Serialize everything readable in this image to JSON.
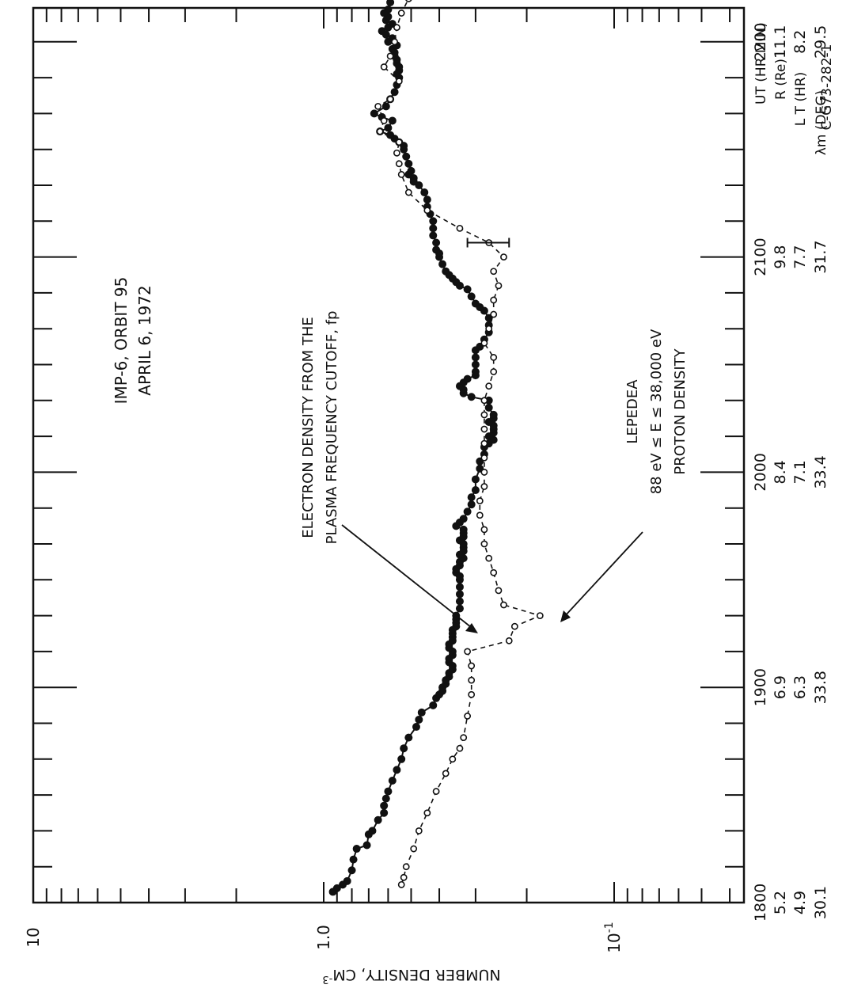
{
  "figure_id": "C-G73-282-1",
  "chart_data": {
    "type": "line",
    "scale": {
      "y": "log",
      "y_range": [
        0.01,
        10
      ],
      "x_range_ut": [
        "1800",
        "2230"
      ]
    },
    "y_axis": {
      "label": "NUMBER DENSITY, CM",
      "label_exponent": "-3",
      "tick_labels": [
        {
          "v": 10,
          "text": "10"
        },
        {
          "v": 1.0,
          "text": "1.0"
        },
        {
          "v": 0.1,
          "text": "10",
          "sup": "-1"
        }
      ]
    },
    "x_axis": {
      "row_labels": [
        "UT (HR MIN)",
        "R (Re)",
        "L T (HR)",
        "λm (DEG)"
      ],
      "major_ticks": [
        {
          "ut": 0,
          "labels": [
            "1800",
            "5.2",
            "4.9",
            "30.1"
          ]
        },
        {
          "ut": 60,
          "labels": [
            "1900",
            "6.9",
            "6.3",
            "33.8"
          ]
        },
        {
          "ut": 120,
          "labels": [
            "2000",
            "8.4",
            "7.1",
            "33.4"
          ]
        },
        {
          "ut": 180,
          "labels": [
            "2100",
            "9.8",
            "7.7",
            "31.7"
          ]
        },
        {
          "ut": 240,
          "labels": [
            "2200",
            "11.1",
            "8.2",
            "29.5"
          ]
        }
      ]
    },
    "title_lines": [
      "IMP-6, ORBIT 95",
      "APRIL 6, 1972"
    ],
    "annotations": {
      "electron": [
        "ELECTRON DENSITY FROM THE",
        "PLASMA FREQUENCY CUTOFF, fp"
      ],
      "proton": [
        "LEPEDEA",
        "88 eV ≤ E ≤ 38,000 eV",
        "PROTON DENSITY"
      ]
    },
    "series": [
      {
        "name": "ELECTRON DENSITY FROM THE PLASMA FREQUENCY CUTOFF, fp",
        "style": "solid, filled markers",
        "points": [
          [
            3,
            0.93
          ],
          [
            4,
            0.9
          ],
          [
            5,
            0.86
          ],
          [
            6,
            0.83
          ],
          [
            9,
            0.8
          ],
          [
            12,
            0.79
          ],
          [
            15,
            0.77
          ],
          [
            16,
            0.71
          ],
          [
            19,
            0.7
          ],
          [
            20,
            0.68
          ],
          [
            23,
            0.65
          ],
          [
            25,
            0.62
          ],
          [
            27,
            0.62
          ],
          [
            29,
            0.61
          ],
          [
            31,
            0.6
          ],
          [
            34,
            0.58
          ],
          [
            37,
            0.56
          ],
          [
            40,
            0.54
          ],
          [
            43,
            0.53
          ],
          [
            46,
            0.51
          ],
          [
            49,
            0.48
          ],
          [
            51,
            0.47
          ],
          [
            53,
            0.46
          ],
          [
            55,
            0.42
          ],
          [
            57,
            0.41
          ],
          [
            58,
            0.4
          ],
          [
            59,
            0.39
          ],
          [
            60,
            0.39
          ],
          [
            61,
            0.38
          ],
          [
            62,
            0.38
          ],
          [
            63,
            0.37
          ],
          [
            64,
            0.37
          ],
          [
            65,
            0.36
          ],
          [
            66,
            0.36
          ],
          [
            67,
            0.37
          ],
          [
            68,
            0.37
          ],
          [
            69,
            0.36
          ],
          [
            70,
            0.36
          ],
          [
            71,
            0.37
          ],
          [
            72,
            0.37
          ],
          [
            73,
            0.36
          ],
          [
            74,
            0.36
          ],
          [
            75,
            0.36
          ],
          [
            76,
            0.36
          ],
          [
            77,
            0.35
          ],
          [
            78,
            0.35
          ],
          [
            79,
            0.35
          ],
          [
            80,
            0.35
          ],
          [
            82,
            0.34
          ],
          [
            84,
            0.34
          ],
          [
            86,
            0.34
          ],
          [
            88,
            0.34
          ],
          [
            90,
            0.34
          ],
          [
            91,
            0.34
          ],
          [
            92,
            0.35
          ],
          [
            93,
            0.35
          ],
          [
            94,
            0.34
          ],
          [
            95,
            0.34
          ],
          [
            96,
            0.33
          ],
          [
            97,
            0.34
          ],
          [
            98,
            0.33
          ],
          [
            99,
            0.33
          ],
          [
            100,
            0.33
          ],
          [
            101,
            0.34
          ],
          [
            102,
            0.33
          ],
          [
            103,
            0.33
          ],
          [
            104,
            0.33
          ],
          [
            105,
            0.35
          ],
          [
            106,
            0.34
          ],
          [
            107,
            0.33
          ],
          [
            109,
            0.32
          ],
          [
            111,
            0.31
          ],
          [
            113,
            0.31
          ],
          [
            115,
            0.3
          ],
          [
            118,
            0.3
          ],
          [
            121,
            0.29
          ],
          [
            123,
            0.29
          ],
          [
            125,
            0.28
          ],
          [
            127,
            0.28
          ],
          [
            128,
            0.27
          ],
          [
            129,
            0.26
          ],
          [
            130,
            0.27
          ],
          [
            131,
            0.26
          ],
          [
            132,
            0.26
          ],
          [
            133,
            0.26
          ],
          [
            134,
            0.27
          ],
          [
            135,
            0.26
          ],
          [
            136,
            0.26
          ],
          [
            138,
            0.27
          ],
          [
            140,
            0.27
          ],
          [
            141,
            0.31
          ],
          [
            142,
            0.33
          ],
          [
            143,
            0.33
          ],
          [
            144,
            0.34
          ],
          [
            145,
            0.33
          ],
          [
            146,
            0.32
          ],
          [
            147,
            0.3
          ],
          [
            148,
            0.3
          ],
          [
            150,
            0.3
          ],
          [
            152,
            0.3
          ],
          [
            154,
            0.3
          ],
          [
            155,
            0.29
          ],
          [
            157,
            0.28
          ],
          [
            159,
            0.27
          ],
          [
            161,
            0.27
          ],
          [
            163,
            0.27
          ],
          [
            165,
            0.28
          ],
          [
            166,
            0.29
          ],
          [
            167,
            0.3
          ],
          [
            169,
            0.31
          ],
          [
            171,
            0.32
          ],
          [
            172,
            0.34
          ],
          [
            173,
            0.35
          ],
          [
            174,
            0.36
          ],
          [
            175,
            0.37
          ],
          [
            176,
            0.38
          ],
          [
            178,
            0.39
          ],
          [
            180,
            0.4
          ],
          [
            181,
            0.4
          ],
          [
            182,
            0.41
          ],
          [
            184,
            0.41
          ],
          [
            186,
            0.42
          ],
          [
            188,
            0.42
          ],
          [
            190,
            0.42
          ],
          [
            192,
            0.43
          ],
          [
            194,
            0.44
          ],
          [
            196,
            0.44
          ],
          [
            198,
            0.45
          ],
          [
            200,
            0.47
          ],
          [
            201,
            0.49
          ],
          [
            202,
            0.49
          ],
          [
            203,
            0.51
          ],
          [
            204,
            0.5
          ],
          [
            206,
            0.51
          ],
          [
            208,
            0.52
          ],
          [
            210,
            0.53
          ],
          [
            211,
            0.53
          ],
          [
            212,
            0.55
          ],
          [
            213,
            0.57
          ],
          [
            214,
            0.59
          ],
          [
            215,
            0.64
          ],
          [
            216,
            0.6
          ],
          [
            218,
            0.58
          ],
          [
            219,
            0.63
          ],
          [
            220,
            0.67
          ],
          [
            222,
            0.61
          ],
          [
            224,
            0.59
          ],
          [
            226,
            0.57
          ],
          [
            228,
            0.56
          ],
          [
            230,
            0.55
          ],
          [
            231,
            0.56
          ],
          [
            232,
            0.55
          ],
          [
            233,
            0.55
          ],
          [
            234,
            0.56
          ],
          [
            235,
            0.56
          ],
          [
            236,
            0.57
          ],
          [
            237,
            0.57
          ],
          [
            238,
            0.58
          ],
          [
            239,
            0.56
          ],
          [
            240,
            0.6
          ],
          [
            241,
            0.58
          ],
          [
            242,
            0.61
          ],
          [
            243,
            0.63
          ],
          [
            244,
            0.6
          ],
          [
            245,
            0.58
          ],
          [
            246,
            0.61
          ],
          [
            247,
            0.6
          ],
          [
            248,
            0.62
          ],
          [
            249,
            0.6
          ],
          [
            251,
            0.59
          ],
          [
            253,
            0.6
          ],
          [
            254,
            0.63
          ],
          [
            256,
            0.61
          ],
          [
            257,
            0.59
          ],
          [
            258,
            0.61
          ],
          [
            260,
            0.62
          ],
          [
            261,
            0.64
          ],
          [
            262,
            0.62
          ],
          [
            264,
            0.61
          ],
          [
            266,
            0.59
          ],
          [
            267,
            0.58
          ],
          [
            268,
            0.6
          ],
          [
            269,
            0.62
          ],
          [
            270,
            0.62
          ],
          [
            272,
            0.61
          ],
          [
            273,
            0.6
          ]
        ]
      },
      {
        "name": "LEPEDEA 88 eV ≤ E ≤ 38,000 eV PROTON DENSITY",
        "style": "dashed, open markers",
        "points": [
          [
            5,
            0.54
          ],
          [
            7,
            0.53
          ],
          [
            10,
            0.52
          ],
          [
            15,
            0.49
          ],
          [
            20,
            0.47
          ],
          [
            25,
            0.44
          ],
          [
            31,
            0.41
          ],
          [
            36,
            0.38
          ],
          [
            40,
            0.36
          ],
          [
            43,
            0.34
          ],
          [
            46,
            0.33
          ],
          [
            52,
            0.32
          ],
          [
            58,
            0.31
          ],
          [
            62,
            0.31
          ],
          [
            66,
            0.31
          ],
          [
            70,
            0.32
          ],
          [
            73,
            0.23
          ],
          [
            77,
            0.22
          ],
          [
            80,
            0.18
          ],
          [
            83,
            0.24
          ],
          [
            87,
            0.25
          ],
          [
            92,
            0.26
          ],
          [
            96,
            0.27
          ],
          [
            100,
            0.28
          ],
          [
            104,
            0.28
          ],
          [
            108,
            0.29
          ],
          [
            112,
            0.29
          ],
          [
            116,
            0.28
          ],
          [
            120,
            0.28
          ],
          [
            124,
            0.28
          ],
          [
            128,
            0.28
          ],
          [
            132,
            0.28
          ],
          [
            136,
            0.28
          ],
          [
            140,
            0.28
          ],
          [
            144,
            0.27
          ],
          [
            148,
            0.26
          ],
          [
            152,
            0.26
          ],
          [
            156,
            0.28
          ],
          [
            160,
            0.27
          ],
          [
            164,
            0.26
          ],
          [
            168,
            0.26
          ],
          [
            172,
            0.25
          ],
          [
            176,
            0.26
          ],
          [
            180,
            0.24
          ],
          [
            184,
            0.27
          ],
          [
            188,
            0.34
          ],
          [
            193,
            0.44
          ],
          [
            198,
            0.51
          ],
          [
            203,
            0.54
          ],
          [
            206,
            0.55
          ],
          [
            209,
            0.56
          ],
          [
            212,
            0.55
          ],
          [
            215,
            0.64
          ],
          [
            218,
            0.62
          ],
          [
            222,
            0.65
          ],
          [
            224,
            0.59
          ],
          [
            229,
            0.55
          ],
          [
            233,
            0.62
          ],
          [
            236,
            0.59
          ],
          [
            240,
            0.57
          ],
          [
            244,
            0.56
          ],
          [
            248,
            0.54
          ],
          [
            252,
            0.51
          ],
          [
            257,
            0.5
          ],
          [
            260,
            0.51
          ],
          [
            263,
            0.49
          ],
          [
            266,
            0.48
          ],
          [
            269,
            0.48
          ],
          [
            271,
            0.46
          ]
        ],
        "error_bars": [
          {
            "ut": 184,
            "low": 0.23,
            "high": 0.32
          }
        ]
      }
    ]
  }
}
